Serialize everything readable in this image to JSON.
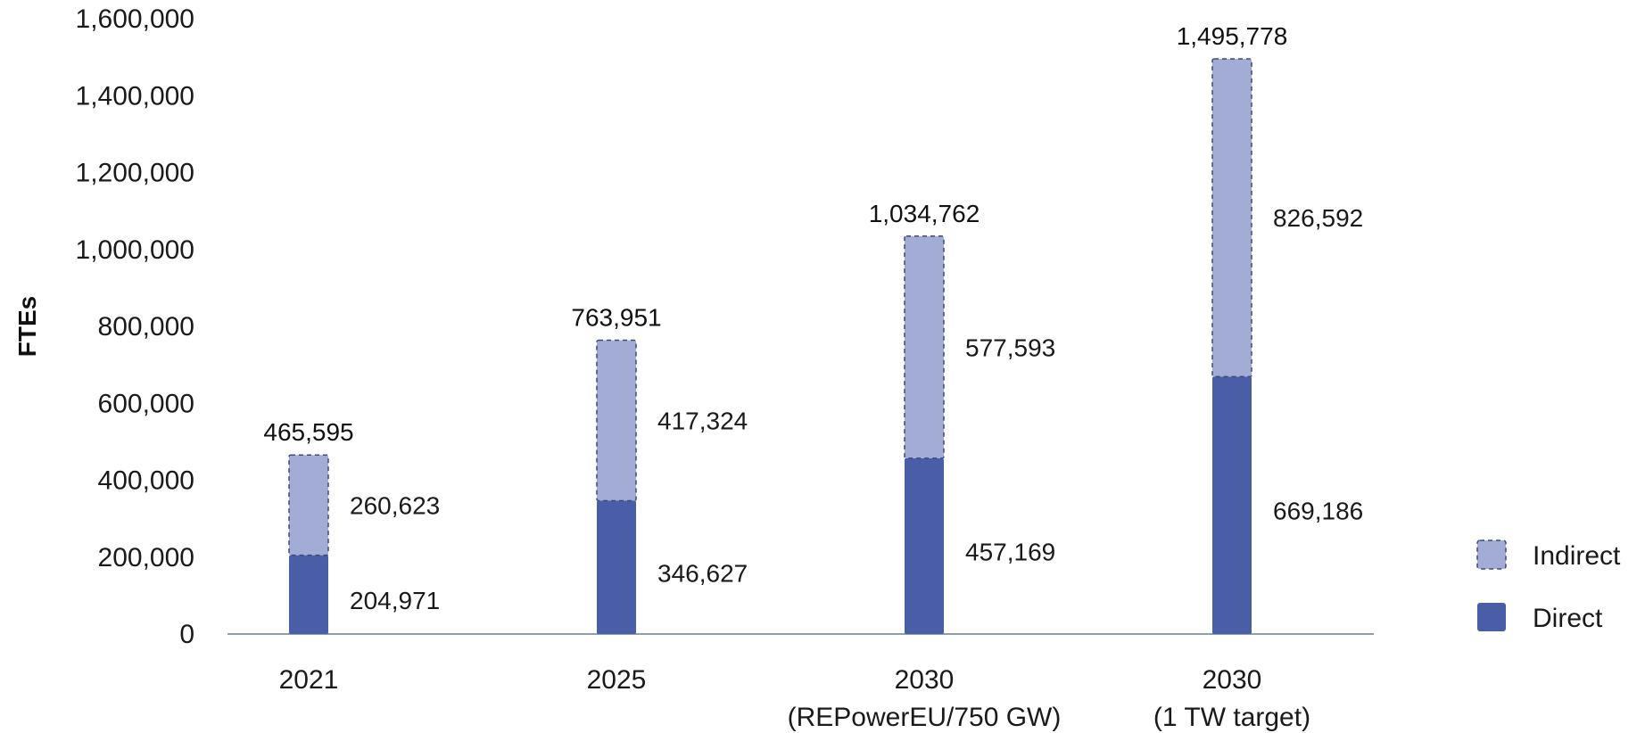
{
  "chart_data": {
    "type": "bar",
    "stacked": true,
    "categories": [
      "2021",
      "2025",
      "2030\n(REPowerEU/750 GW)",
      "2030\n(1 TW target)"
    ],
    "series": [
      {
        "name": "Direct",
        "values": [
          204971,
          346627,
          457169,
          669186
        ],
        "labels": [
          "204,971",
          "346,627",
          "457,169",
          "669,186"
        ],
        "color": "#4a5ea8",
        "border": "solid"
      },
      {
        "name": "Indirect",
        "values": [
          260623,
          417324,
          577593,
          826592
        ],
        "labels": [
          "260,623",
          "417,324",
          "577,593",
          "826,592"
        ],
        "color": "#a3acd4",
        "border": "dashed"
      }
    ],
    "totals": [
      465595,
      763951,
      1034762,
      1495778
    ],
    "total_labels": [
      "465,595",
      "763,951",
      "1,034,762",
      "1,495,778"
    ],
    "title": "",
    "xlabel": "",
    "ylabel": "FTEs",
    "ylim": [
      0,
      1600000
    ],
    "yticks": [
      0,
      200000,
      400000,
      600000,
      800000,
      1000000,
      1200000,
      1400000,
      1600000
    ],
    "ytick_labels": [
      "0",
      "200,000",
      "400,000",
      "600,000",
      "800,000",
      "1,000,000",
      "1,200,000",
      "1,400,000",
      "1,600,000"
    ],
    "grid": false,
    "legend_position": "bottom-right",
    "legend_order": [
      "Indirect",
      "Direct"
    ]
  }
}
